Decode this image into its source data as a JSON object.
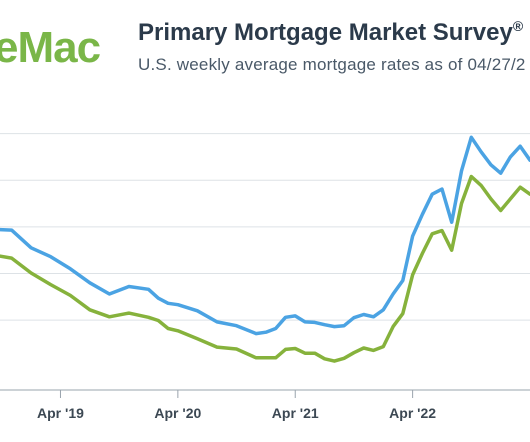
{
  "header": {
    "logo_text": "eMac",
    "title": "Primary Mortgage Market Survey",
    "title_mark": "®",
    "subtitle": "U.S. weekly average mortgage rates as of 04/27/2"
  },
  "colors": {
    "series_30yr": "#4ba3e3",
    "series_15yr": "#86b23c",
    "logo": "#7ab648",
    "grid": "#dde2e6",
    "axis_text": "#3c4853"
  },
  "chart_data": {
    "type": "line",
    "xlabel": "",
    "ylabel": "",
    "x_ticks": [
      "Apr '19",
      "Apr '20",
      "Apr '21",
      "Apr '22"
    ],
    "x_range": [
      "2018-09",
      "2023-04"
    ],
    "ylim": [
      1.5,
      8.0
    ],
    "y_gridlines": [
      3.0,
      4.0,
      5.0,
      6.0,
      7.0
    ],
    "series": [
      {
        "color": "#4ba3e3",
        "points": [
          [
            "2018-09",
            4.95
          ],
          [
            "2018-11",
            4.93
          ],
          [
            "2019-01",
            4.55
          ],
          [
            "2019-03",
            4.36
          ],
          [
            "2019-05",
            4.1
          ],
          [
            "2019-07",
            3.8
          ],
          [
            "2019-09",
            3.56
          ],
          [
            "2019-11",
            3.72
          ],
          [
            "2020-01",
            3.66
          ],
          [
            "2020-02",
            3.47
          ],
          [
            "2020-03",
            3.36
          ],
          [
            "2020-04",
            3.33
          ],
          [
            "2020-06",
            3.2
          ],
          [
            "2020-08",
            2.96
          ],
          [
            "2020-10",
            2.88
          ],
          [
            "2020-12",
            2.71
          ],
          [
            "2021-01",
            2.74
          ],
          [
            "2021-02",
            2.82
          ],
          [
            "2021-03",
            3.06
          ],
          [
            "2021-04",
            3.09
          ],
          [
            "2021-05",
            2.96
          ],
          [
            "2021-06",
            2.95
          ],
          [
            "2021-07",
            2.9
          ],
          [
            "2021-08",
            2.86
          ],
          [
            "2021-09",
            2.88
          ],
          [
            "2021-10",
            3.05
          ],
          [
            "2021-11",
            3.12
          ],
          [
            "2021-12",
            3.07
          ],
          [
            "2022-01",
            3.22
          ],
          [
            "2022-02",
            3.56
          ],
          [
            "2022-03",
            3.85
          ],
          [
            "2022-04",
            4.8
          ],
          [
            "2022-05",
            5.27
          ],
          [
            "2022-06",
            5.7
          ],
          [
            "2022-07",
            5.81
          ],
          [
            "2022-08",
            5.1
          ],
          [
            "2022-09",
            6.2
          ],
          [
            "2022-10",
            6.92
          ],
          [
            "2022-11",
            6.61
          ],
          [
            "2022-12",
            6.33
          ],
          [
            "2023-01",
            6.15
          ],
          [
            "2023-02",
            6.5
          ],
          [
            "2023-03",
            6.73
          ],
          [
            "2023-04",
            6.43
          ]
        ]
      },
      {
        "color": "#86b23c",
        "points": [
          [
            "2018-09",
            4.4
          ],
          [
            "2018-11",
            4.33
          ],
          [
            "2019-01",
            4.01
          ],
          [
            "2019-03",
            3.76
          ],
          [
            "2019-05",
            3.53
          ],
          [
            "2019-07",
            3.22
          ],
          [
            "2019-09",
            3.07
          ],
          [
            "2019-11",
            3.15
          ],
          [
            "2020-01",
            3.06
          ],
          [
            "2020-02",
            2.99
          ],
          [
            "2020-03",
            2.82
          ],
          [
            "2020-04",
            2.77
          ],
          [
            "2020-06",
            2.6
          ],
          [
            "2020-08",
            2.42
          ],
          [
            "2020-10",
            2.38
          ],
          [
            "2020-12",
            2.19
          ],
          [
            "2021-01",
            2.19
          ],
          [
            "2021-02",
            2.19
          ],
          [
            "2021-03",
            2.37
          ],
          [
            "2021-04",
            2.39
          ],
          [
            "2021-05",
            2.29
          ],
          [
            "2021-06",
            2.29
          ],
          [
            "2021-07",
            2.17
          ],
          [
            "2021-08",
            2.12
          ],
          [
            "2021-09",
            2.18
          ],
          [
            "2021-10",
            2.3
          ],
          [
            "2021-11",
            2.4
          ],
          [
            "2021-12",
            2.35
          ],
          [
            "2022-01",
            2.43
          ],
          [
            "2022-02",
            2.86
          ],
          [
            "2022-03",
            3.14
          ],
          [
            "2022-04",
            3.97
          ],
          [
            "2022-05",
            4.43
          ],
          [
            "2022-06",
            4.85
          ],
          [
            "2022-07",
            4.92
          ],
          [
            "2022-08",
            4.5
          ],
          [
            "2022-09",
            5.5
          ],
          [
            "2022-10",
            6.08
          ],
          [
            "2022-11",
            5.89
          ],
          [
            "2022-12",
            5.6
          ],
          [
            "2023-01",
            5.35
          ],
          [
            "2023-02",
            5.6
          ],
          [
            "2023-03",
            5.85
          ],
          [
            "2023-04",
            5.7
          ]
        ]
      }
    ]
  }
}
